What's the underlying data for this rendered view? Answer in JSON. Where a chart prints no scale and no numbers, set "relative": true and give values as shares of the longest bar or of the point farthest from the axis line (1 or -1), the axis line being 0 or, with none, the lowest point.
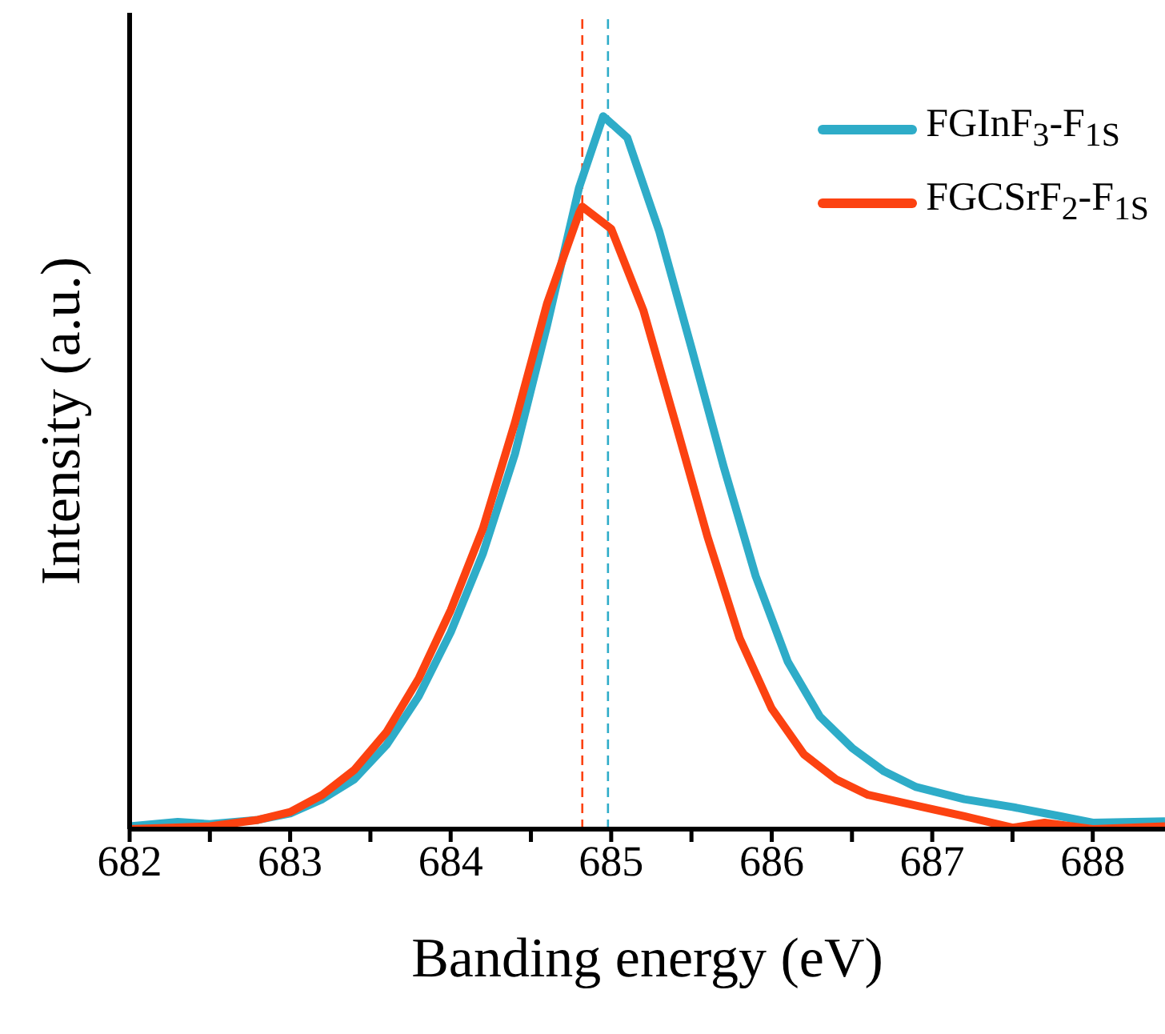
{
  "chart_data": {
    "type": "line",
    "relative": true,
    "xlabel": "Banding energy (eV)",
    "ylabel": "Intensity (a.u.)",
    "xlim": [
      682,
      688.45
    ],
    "xticks": [
      682,
      {
        "value": 682.5,
        "label": null
      },
      683,
      {
        "value": 683.5,
        "label": null
      },
      684,
      {
        "value": 684.5,
        "label": null
      },
      685,
      {
        "value": 685.5,
        "label": null
      },
      686,
      {
        "value": 686.5,
        "label": null
      },
      687,
      {
        "value": 687.5,
        "label": null
      },
      688
    ],
    "legend": "top right",
    "grid": false,
    "marker": "none",
    "line_style": "solid",
    "series": [
      {
        "name": "FGInF$_{3}$-F$_{1S}$",
        "color": "#2eacc8",
        "x": [
          682,
          682.3,
          682.5,
          682.8,
          683.0,
          683.2,
          683.4,
          683.6,
          683.8,
          684.0,
          684.2,
          684.4,
          684.6,
          684.8,
          684.95,
          685.1,
          685.3,
          685.5,
          685.7,
          685.9,
          686.1,
          686.3,
          686.5,
          686.7,
          686.9,
          687.2,
          687.5,
          687.8,
          688.0,
          688.45
        ],
        "values": [
          0.004,
          0.01,
          0.007,
          0.013,
          0.022,
          0.042,
          0.07,
          0.118,
          0.186,
          0.276,
          0.386,
          0.526,
          0.706,
          0.9,
          1.0,
          0.97,
          0.838,
          0.675,
          0.509,
          0.355,
          0.235,
          0.158,
          0.114,
          0.081,
          0.059,
          0.042,
          0.031,
          0.018,
          0.009,
          0.011
        ]
      },
      {
        "name": "FGCSrF$_{2}$-F$_{1S}$",
        "color": "#fc4211",
        "x": [
          682,
          682.5,
          682.8,
          683.0,
          683.2,
          683.4,
          683.6,
          683.8,
          684.0,
          684.2,
          684.4,
          684.6,
          684.8,
          684.82,
          685.0,
          685.2,
          685.4,
          685.6,
          685.8,
          686.0,
          686.2,
          686.4,
          686.6,
          686.9,
          687.2,
          687.5,
          687.7,
          688.0,
          688.45
        ],
        "values": [
          0,
          0.004,
          0.013,
          0.024,
          0.048,
          0.083,
          0.136,
          0.211,
          0.307,
          0.421,
          0.57,
          0.737,
          0.864,
          0.873,
          0.842,
          0.728,
          0.57,
          0.41,
          0.268,
          0.169,
          0.105,
          0.07,
          0.048,
          0.033,
          0.018,
          0.002,
          0.009,
          0,
          0.004
        ]
      }
    ],
    "ref_lines": [
      {
        "axis": "x",
        "value": 684.82,
        "color": "#fc4211",
        "line_style": "dashed"
      },
      {
        "axis": "x",
        "value": 684.98,
        "color": "#2eacc8",
        "line_style": "dashed"
      }
    ]
  }
}
